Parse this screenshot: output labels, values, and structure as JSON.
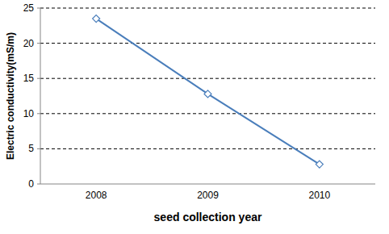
{
  "chart_data": {
    "type": "line",
    "categories": [
      "2008",
      "2009",
      "2010"
    ],
    "values": [
      23.5,
      12.8,
      2.8
    ],
    "color": "#4a7ebb",
    "marker": "diamond",
    "x_label": "seed collection year",
    "y_label": "Electric conductivity(mS/m)",
    "ylim": [
      0,
      25
    ],
    "yticks": [
      0,
      5,
      10,
      15,
      20,
      25
    ],
    "grid": true
  }
}
